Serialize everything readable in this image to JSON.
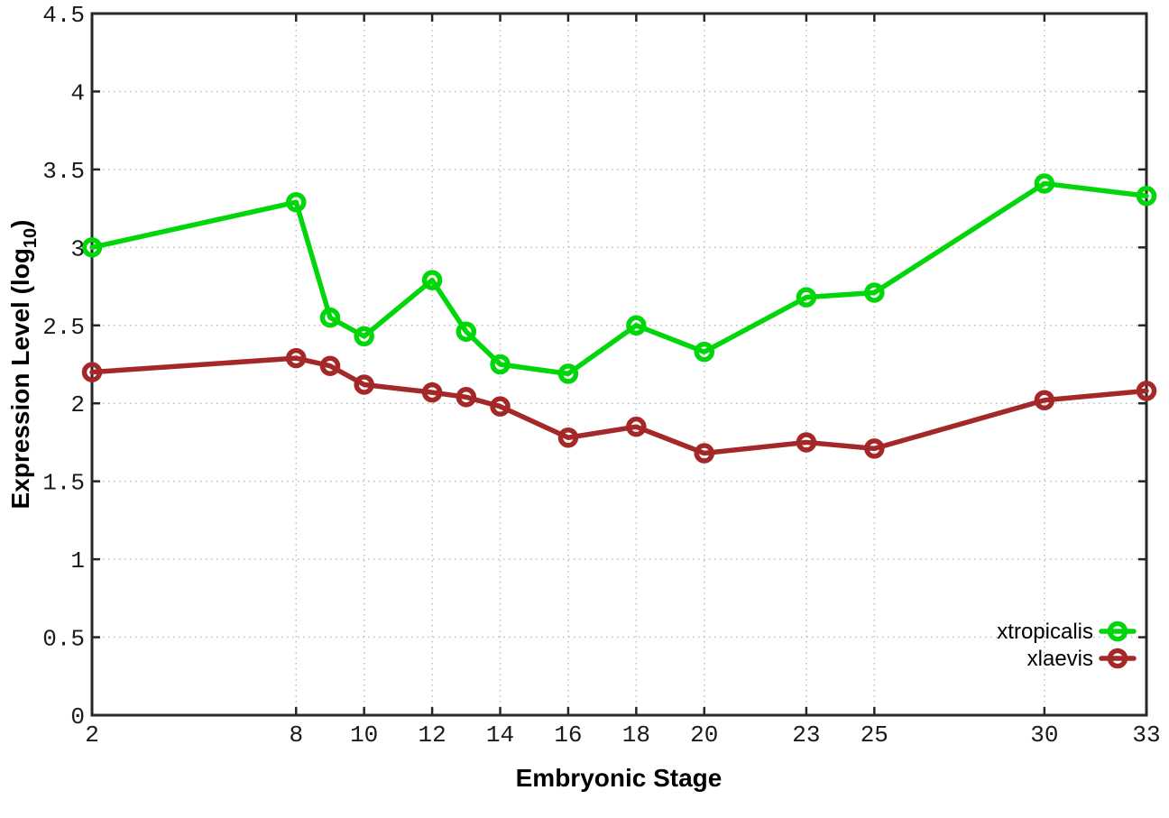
{
  "chart_data": {
    "type": "line",
    "title": "",
    "xlabel": "Embryonic Stage",
    "ylabel": "Expression Level (log10)",
    "ylabel_parts": {
      "main": "Expression Level (log",
      "sub": "10",
      "end": ")"
    },
    "xlim": [
      2,
      33
    ],
    "ylim": [
      0,
      4.5
    ],
    "x_ticks": [
      2,
      8,
      10,
      12,
      14,
      16,
      18,
      20,
      23,
      25,
      30,
      33
    ],
    "y_ticks": [
      0,
      0.5,
      1,
      1.5,
      2,
      2.5,
      3,
      3.5,
      4,
      4.5
    ],
    "y_tick_labels": [
      "0",
      "0.5",
      "1",
      "1.5",
      "2",
      "2.5",
      "3",
      "3.5",
      "4",
      "4.5"
    ],
    "grid": true,
    "legend_position": "bottom-right-inside",
    "marker": "open-circle",
    "x": [
      2,
      8,
      9,
      10,
      12,
      13,
      14,
      16,
      18,
      20,
      23,
      25,
      30,
      33
    ],
    "series": [
      {
        "name": "xtropicalis",
        "color": "#00d60a",
        "values": [
          3.0,
          3.29,
          2.55,
          2.43,
          2.79,
          2.46,
          2.25,
          2.19,
          2.5,
          2.33,
          2.68,
          2.71,
          3.41,
          3.33
        ]
      },
      {
        "name": "xlaevis",
        "color": "#a42828",
        "values": [
          2.2,
          2.29,
          2.24,
          2.12,
          2.07,
          2.04,
          1.98,
          1.78,
          1.85,
          1.68,
          1.75,
          1.71,
          2.02,
          2.08
        ]
      }
    ],
    "colors": {
      "background": "#ffffff",
      "grid": "#bdbdbd",
      "axis": "#262626",
      "tick_text": "#1a1a1a",
      "label_text": "#000000"
    }
  }
}
